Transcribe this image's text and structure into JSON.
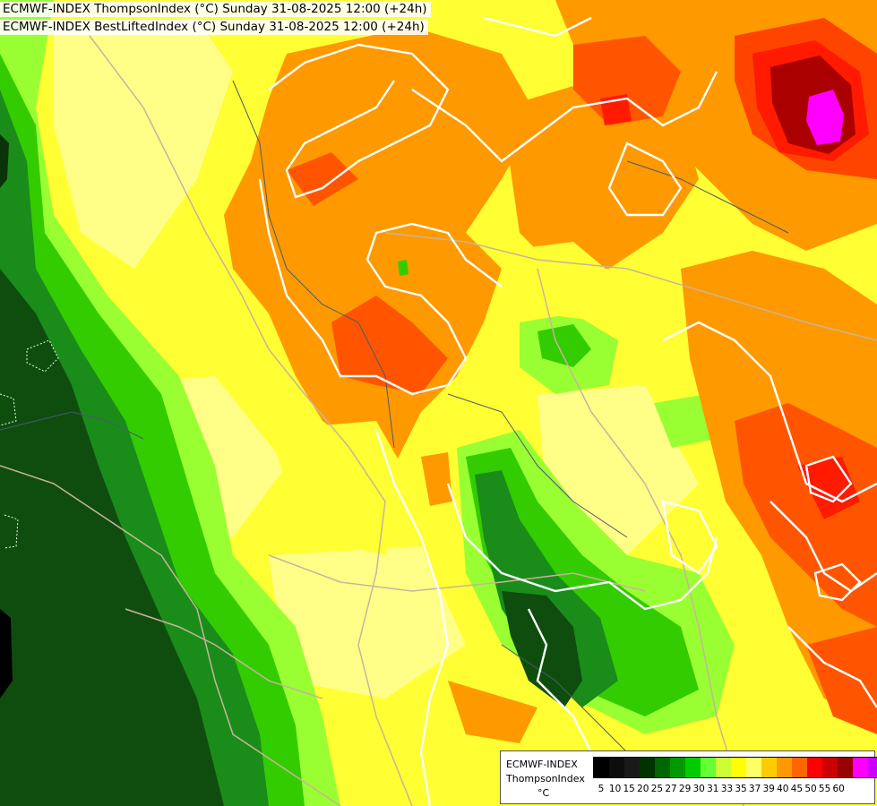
{
  "header": {
    "line1": "ECMWF-INDEX ThompsonIndex (°C) Sunday 31-08-2025 12:00 (+24h)",
    "line2": "ECMWF-INDEX BestLiftedIndex (°C) Sunday 31-08-2025 12:00 (+24h)"
  },
  "legend": {
    "title_line1": "ECMWF-INDEX",
    "title_line2": "ThompsonIndex",
    "unit": "°C",
    "ticks": [
      "5",
      "10",
      "15",
      "20",
      "25",
      "27",
      "29",
      "30",
      "31",
      "33",
      "35",
      "37",
      "39",
      "40",
      "45",
      "50",
      "55",
      "60"
    ],
    "colors": [
      "#000000",
      "#0d0d0d",
      "#1a1a1a",
      "#003300",
      "#006600",
      "#009900",
      "#00cc00",
      "#66ff33",
      "#ccff33",
      "#ffff00",
      "#ffff66",
      "#ffcc00",
      "#ff9900",
      "#ff6600",
      "#ff0000",
      "#cc0000",
      "#990000",
      "#ff00ff",
      "#cc00ff",
      "#6600ff",
      "#0000ff"
    ]
  },
  "colors": {
    "deep_green": "#0f3d0f",
    "green": "#2e8b2e",
    "light_green": "#99ff33",
    "yellow": "#ffff33",
    "orange": "#ff9900",
    "red_orange": "#ff5500",
    "red": "#ff2200",
    "dark_red": "#990000",
    "magenta": "#ff00ff",
    "contour": "#ffffff",
    "border": "#c8b49a"
  }
}
